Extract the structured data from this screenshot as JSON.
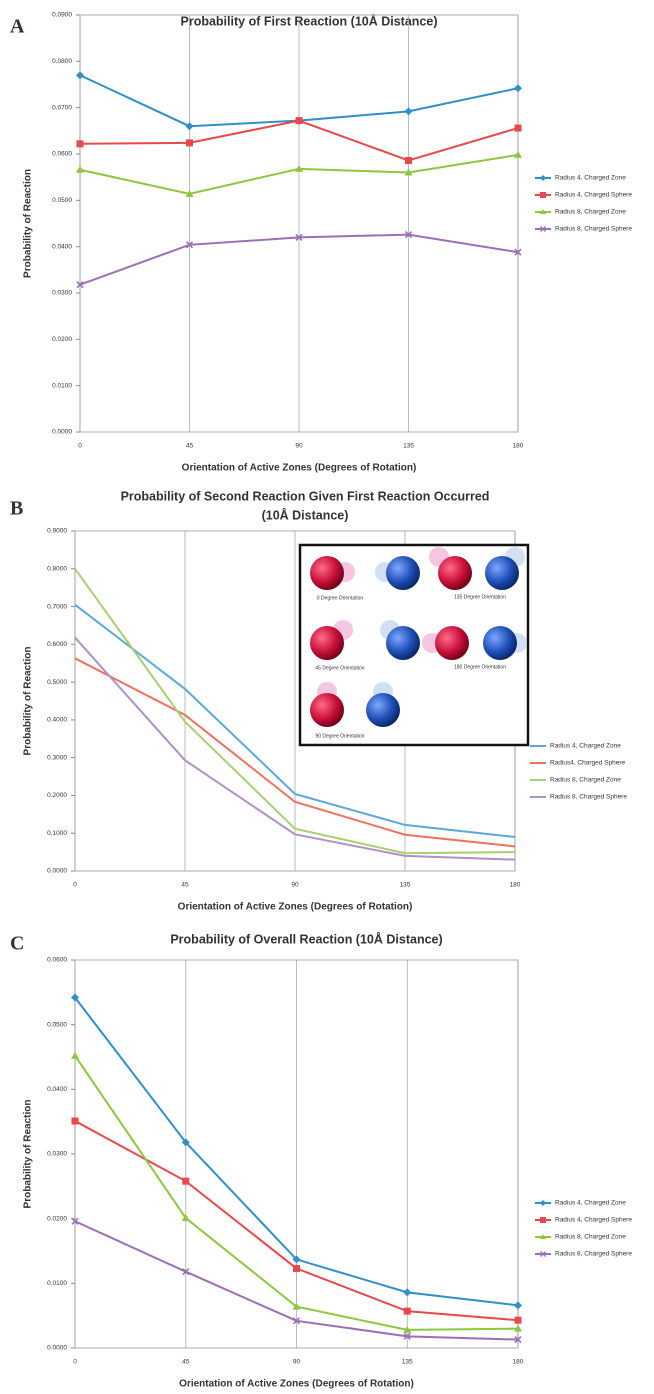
{
  "chart_data": [
    {
      "type": "line",
      "panel": "A",
      "title": "Probability of First Reaction (10Å Distance)",
      "xlabel": "Orientation of Active Zones (Degrees of Rotation)",
      "ylabel": "Probability of Reaction",
      "x": [
        0,
        45,
        90,
        135,
        180
      ],
      "xlim": [
        0,
        180
      ],
      "xticks": [
        0,
        45,
        90,
        135,
        180
      ],
      "ylim": [
        0,
        0.09
      ],
      "yticks": [
        {
          "value": 0,
          "label": "0.0000"
        },
        {
          "value": 0.01,
          "label": "0.0100"
        },
        {
          "value": 0.02,
          "label": "0.0200"
        },
        {
          "value": 0.03,
          "label": "0.0300"
        },
        {
          "value": 0.04,
          "label": "0.0400"
        },
        {
          "value": 0.05,
          "label": "0.0500"
        },
        {
          "value": 0.06,
          "label": "0.0600"
        },
        {
          "value": 0.07,
          "label": "0.0700"
        },
        {
          "value": 0.08,
          "label": "0.0800"
        },
        {
          "value": 0.09,
          "label": "0.0900"
        }
      ],
      "grid": "x",
      "legend": "right",
      "series": [
        {
          "name": "Radius 4, Charged Zone",
          "color": "#2f8fc8",
          "marker": "diamond",
          "values": [
            0.077,
            0.066,
            0.0672,
            0.0692,
            0.0742
          ]
        },
        {
          "name": "Radius 4, Charged Sphere",
          "color": "#e8484a",
          "marker": "square",
          "values": [
            0.0622,
            0.0624,
            0.0672,
            0.0586,
            0.0656
          ]
        },
        {
          "name": "Radius 8, Charged Zone",
          "color": "#8dc63f",
          "marker": "triangle",
          "values": [
            0.0566,
            0.0514,
            0.0568,
            0.056,
            0.0598
          ]
        },
        {
          "name": "Radius 8, Charged Sphere",
          "color": "#9b6fb8",
          "marker": "x",
          "values": [
            0.0318,
            0.0404,
            0.042,
            0.0426,
            0.0388
          ]
        }
      ]
    },
    {
      "type": "line",
      "panel": "B",
      "title": [
        "Probability of Second Reaction Given First Reaction Occurred",
        "(10Å Distance)"
      ],
      "xlabel": "Orientation of Active Zones (Degrees of Rotation)",
      "ylabel": "Probability of Reaction",
      "x": [
        0,
        45,
        90,
        135,
        180
      ],
      "xlim": [
        0,
        180
      ],
      "xticks": [
        0,
        45,
        90,
        135,
        180
      ],
      "ylim": [
        0,
        0.9
      ],
      "yticks": [
        {
          "value": 0,
          "label": "0.0000"
        },
        {
          "value": 0.1,
          "label": "0.1000"
        },
        {
          "value": 0.2,
          "label": "0.2000"
        },
        {
          "value": 0.3,
          "label": "0.3000"
        },
        {
          "value": 0.4,
          "label": "0.4000"
        },
        {
          "value": 0.5,
          "label": "0.5000"
        },
        {
          "value": 0.6,
          "label": "0.6000"
        },
        {
          "value": 0.7,
          "label": "0.7000"
        },
        {
          "value": 0.8,
          "label": "0.8000"
        },
        {
          "value": 0.9,
          "label": "0.9000"
        }
      ],
      "grid": "x",
      "legend": "right",
      "inset": {
        "labels": [
          "0 Degree Orientation",
          "135 Degree Orientation",
          "45 Degree Orientation",
          "180 Degree Orientation",
          "90 Degree Orientation"
        ]
      },
      "series": [
        {
          "name": "Radius 4, Charged Zone",
          "color": "#5aa9d6",
          "values": [
            0.705,
            0.482,
            0.204,
            0.122,
            0.09
          ]
        },
        {
          "name": "Radius4, Charged Sphere",
          "color": "#f07060",
          "values": [
            0.563,
            0.413,
            0.183,
            0.096,
            0.065
          ]
        },
        {
          "name": "Radius 8, Charged Zone",
          "color": "#a8d070",
          "values": [
            0.8,
            0.395,
            0.112,
            0.047,
            0.05
          ]
        },
        {
          "name": "Radius 8, Charged Sphere",
          "color": "#b090c8",
          "values": [
            0.618,
            0.293,
            0.097,
            0.04,
            0.03
          ]
        }
      ]
    },
    {
      "type": "line",
      "panel": "C",
      "title": "Probability of Overall Reaction (10Å Distance)",
      "xlabel": "Orientation of Active Zones (Degrees of Rotation)",
      "ylabel": "Probability of Reaction",
      "x": [
        0,
        45,
        90,
        135,
        180
      ],
      "xlim": [
        0,
        180
      ],
      "xticks": [
        0,
        45,
        90,
        135,
        180
      ],
      "ylim": [
        0,
        0.06
      ],
      "yticks": [
        {
          "value": 0,
          "label": "0.0000"
        },
        {
          "value": 0.01,
          "label": "0.0100"
        },
        {
          "value": 0.02,
          "label": "0.0200"
        },
        {
          "value": 0.03,
          "label": "0.0300"
        },
        {
          "value": 0.04,
          "label": "0.0400"
        },
        {
          "value": 0.05,
          "label": "0.0500"
        },
        {
          "value": 0.06,
          "label": "0.0600"
        }
      ],
      "grid": "x",
      "legend": "right",
      "series": [
        {
          "name": "Radius 4, Charged Zone",
          "color": "#2f8fc8",
          "marker": "diamond",
          "values": [
            0.0542,
            0.0318,
            0.0137,
            0.0086,
            0.0066
          ]
        },
        {
          "name": "Radius 4, Charged Sphere",
          "color": "#e8484a",
          "marker": "square",
          "values": [
            0.0351,
            0.0258,
            0.0123,
            0.0057,
            0.0043
          ]
        },
        {
          "name": "Radius 8, Charged Zone",
          "color": "#8dc63f",
          "marker": "triangle",
          "values": [
            0.0452,
            0.0201,
            0.0064,
            0.0028,
            0.003
          ]
        },
        {
          "name": "Radius 8, Charged Sphere",
          "color": "#9b6fb8",
          "marker": "x",
          "values": [
            0.0196,
            0.0118,
            0.0042,
            0.0018,
            0.0013
          ]
        }
      ]
    }
  ]
}
